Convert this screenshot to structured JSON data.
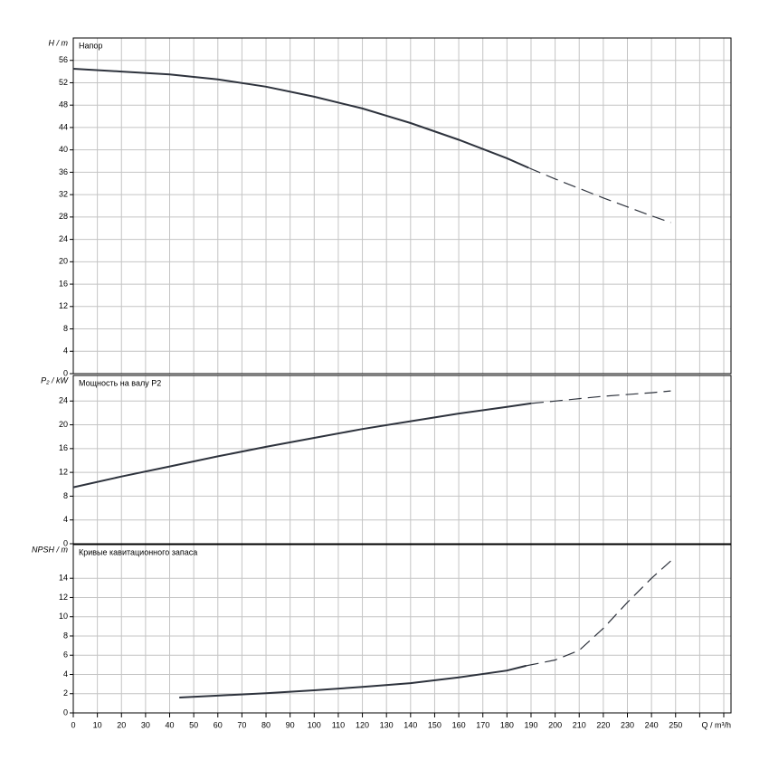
{
  "chart_data": [
    {
      "type": "line",
      "title": "Напор",
      "ylabel": "H / m",
      "color": "#2e333d",
      "xlim": [
        0,
        273
      ],
      "xticks": [
        0,
        10,
        20,
        30,
        40,
        50,
        60,
        70,
        80,
        90,
        100,
        110,
        120,
        130,
        140,
        150,
        160,
        170,
        180,
        190,
        200,
        210,
        220,
        230,
        240,
        250
      ],
      "xgrid_extra": [
        260,
        270
      ],
      "show_xtick_labels": false,
      "ylim": [
        0,
        60
      ],
      "yticks": [
        0,
        4,
        8,
        12,
        16,
        20,
        24,
        28,
        32,
        36,
        40,
        44,
        48,
        52,
        56
      ],
      "grid": true,
      "series": [
        {
          "dashed": false,
          "x": [
            0,
            20,
            40,
            60,
            80,
            100,
            120,
            140,
            160,
            180,
            189
          ],
          "values": [
            54.5,
            54.0,
            53.5,
            52.6,
            51.3,
            49.5,
            47.4,
            44.8,
            41.8,
            38.5,
            36.8
          ]
        },
        {
          "dashed": true,
          "x": [
            189,
            200,
            220,
            240,
            248
          ],
          "values": [
            36.8,
            34.8,
            31.4,
            28.2,
            27.0
          ]
        }
      ]
    },
    {
      "type": "line",
      "title": "Мощность на валу P2",
      "ylabel": "P₂ / kW",
      "color": "#2e333d",
      "xlim": [
        0,
        273
      ],
      "xticks": [
        0,
        10,
        20,
        30,
        40,
        50,
        60,
        70,
        80,
        90,
        100,
        110,
        120,
        130,
        140,
        150,
        160,
        170,
        180,
        190,
        200,
        210,
        220,
        230,
        240,
        250
      ],
      "xgrid_extra": [
        260,
        270
      ],
      "show_xtick_labels": false,
      "ylim": [
        0,
        28.3
      ],
      "yticks": [
        0,
        4,
        8,
        12,
        16,
        20,
        24
      ],
      "grid": true,
      "series": [
        {
          "dashed": false,
          "x": [
            0,
            20,
            40,
            60,
            80,
            100,
            120,
            140,
            160,
            180,
            190
          ],
          "values": [
            9.5,
            11.3,
            13.0,
            14.7,
            16.3,
            17.8,
            19.3,
            20.6,
            21.9,
            23.0,
            23.6
          ]
        },
        {
          "dashed": true,
          "x": [
            190,
            200,
            220,
            240,
            248
          ],
          "values": [
            23.6,
            24.0,
            24.8,
            25.4,
            25.7
          ]
        }
      ]
    },
    {
      "type": "line",
      "title": "Кривые кавитационного запаса",
      "ylabel": "NPSH / m",
      "xlabel": "Q / m³/h",
      "color": "#2e333d",
      "xlim": [
        0,
        273
      ],
      "xticks": [
        0,
        10,
        20,
        30,
        40,
        50,
        60,
        70,
        80,
        90,
        100,
        110,
        120,
        130,
        140,
        150,
        160,
        170,
        180,
        190,
        200,
        210,
        220,
        230,
        240,
        250
      ],
      "xgrid_extra": [
        260,
        270
      ],
      "show_xtick_labels": true,
      "ylim": [
        0,
        17.5
      ],
      "yticks": [
        0,
        2,
        4,
        6,
        8,
        10,
        12,
        14
      ],
      "grid": true,
      "series": [
        {
          "dashed": false,
          "x": [
            44,
            60,
            80,
            100,
            120,
            140,
            160,
            180,
            188
          ],
          "values": [
            1.6,
            1.8,
            2.05,
            2.35,
            2.7,
            3.1,
            3.7,
            4.4,
            4.9
          ]
        },
        {
          "dashed": true,
          "x": [
            188,
            200,
            210,
            220,
            230,
            240,
            248
          ],
          "values": [
            4.9,
            5.5,
            6.5,
            8.8,
            11.5,
            14.0,
            15.8
          ]
        }
      ]
    }
  ]
}
